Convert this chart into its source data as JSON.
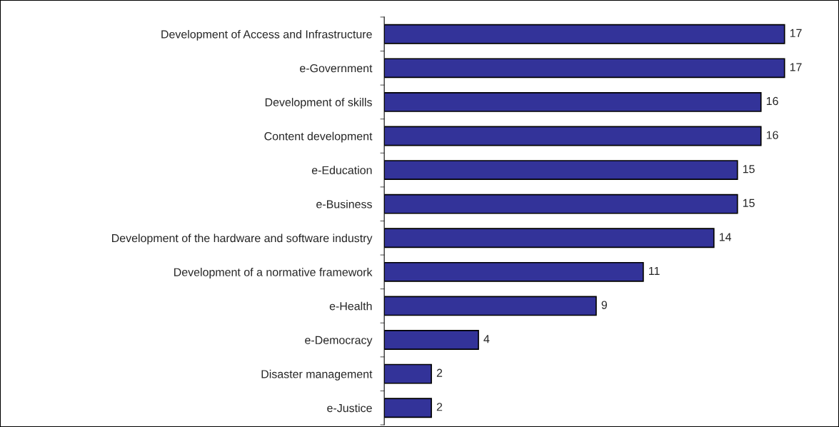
{
  "chart_data": {
    "type": "bar",
    "orientation": "horizontal",
    "categories": [
      "Development of Access and Infrastructure",
      "e-Government",
      "Development of skills",
      "Content development",
      "e-Education",
      "e-Business",
      "Development of the hardware and software industry",
      "Development of a normative framework",
      "e-Health",
      "e-Democracy",
      "Disaster management",
      "e-Justice"
    ],
    "values": [
      17,
      17,
      16,
      16,
      15,
      15,
      14,
      11,
      9,
      4,
      2,
      2
    ],
    "color": "#333399",
    "data_labels": true,
    "tick_labels": "y",
    "grid": false,
    "legend": false
  }
}
